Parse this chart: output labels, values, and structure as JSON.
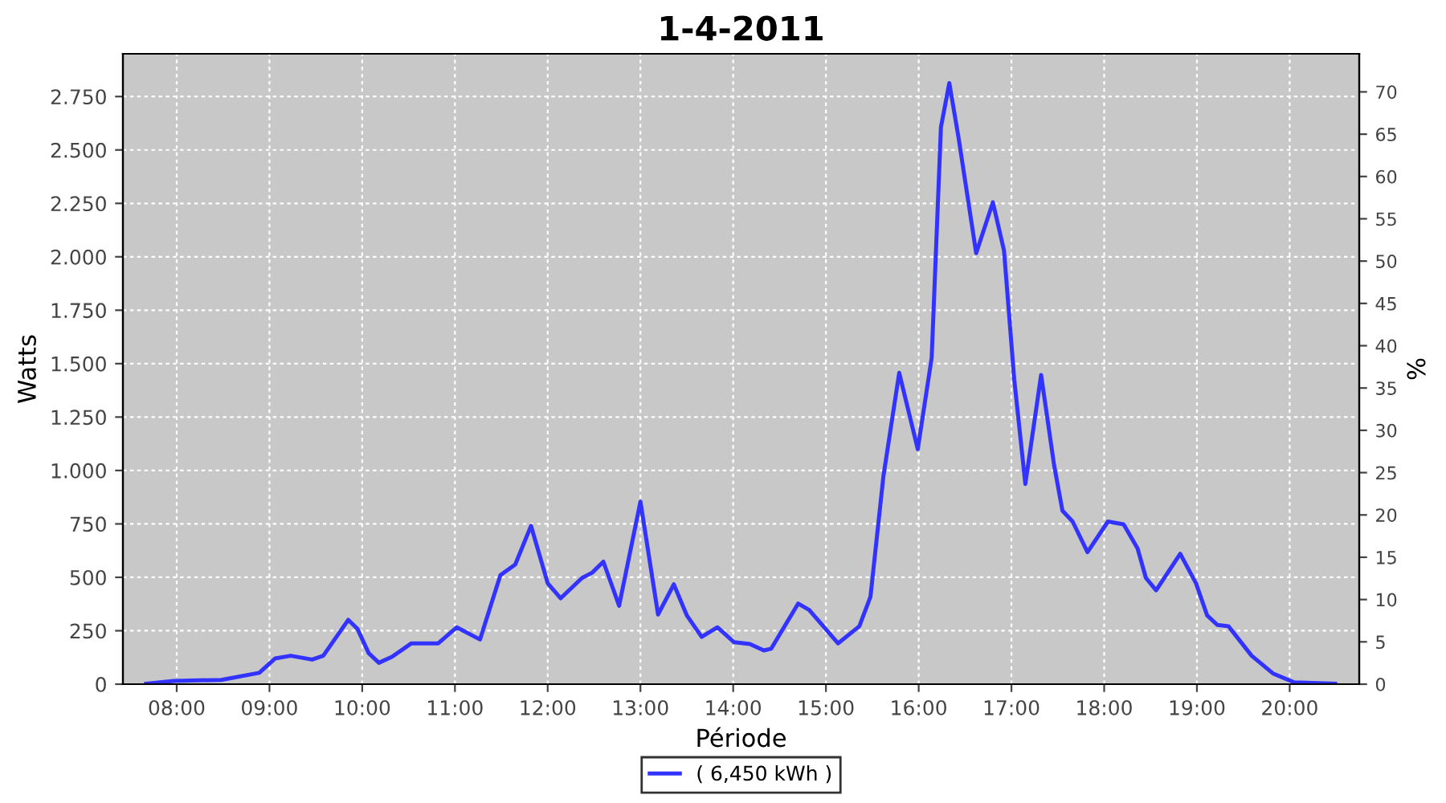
{
  "chart_data": {
    "type": "line",
    "title": "1-4-2011",
    "xlabel": "Période",
    "ylabel": "Watts",
    "y2label": "%",
    "x": [
      7.67,
      7.97,
      8.48,
      8.89,
      9.06,
      9.23,
      9.46,
      9.58,
      9.85,
      9.95,
      10.07,
      10.18,
      10.32,
      10.53,
      10.82,
      11.02,
      11.27,
      11.49,
      11.65,
      11.82,
      12.0,
      12.14,
      12.37,
      12.48,
      12.6,
      12.77,
      13.0,
      13.19,
      13.36,
      13.5,
      13.66,
      13.83,
      14.01,
      14.18,
      14.33,
      14.41,
      14.7,
      14.82,
      15.13,
      15.36,
      15.48,
      15.62,
      15.79,
      15.99,
      16.14,
      16.24,
      16.33,
      16.43,
      16.62,
      16.8,
      16.92,
      17.03,
      17.15,
      17.32,
      17.46,
      17.55,
      17.66,
      17.82,
      18.04,
      18.21,
      18.36,
      18.45,
      18.56,
      18.82,
      18.99,
      19.11,
      19.22,
      19.34,
      19.59,
      19.82,
      20.05,
      20.49
    ],
    "series": [
      {
        "name": "( 6,450 kWh )",
        "color": "#3333ff",
        "values": [
          2,
          15,
          20,
          53,
          120,
          133,
          115,
          133,
          301,
          258,
          145,
          100,
          128,
          191,
          191,
          266,
          209,
          510,
          560,
          741,
          472,
          402,
          497,
          522,
          573,
          367,
          854,
          326,
          467,
          322,
          221,
          266,
          196,
          188,
          158,
          166,
          377,
          347,
          191,
          271,
          409,
          974,
          1457,
          1100,
          1527,
          2607,
          2813,
          2557,
          2017,
          2255,
          2029,
          1427,
          937,
          1447,
          1025,
          812,
          761,
          618,
          761,
          748,
          635,
          497,
          439,
          610,
          472,
          322,
          277,
          271,
          133,
          50,
          8,
          2
        ]
      }
    ],
    "xlim": [
      7.42,
      20.75
    ],
    "xticks": [
      {
        "value": 8,
        "label": "08:00"
      },
      {
        "value": 9,
        "label": "09:00"
      },
      {
        "value": 10,
        "label": "10:00"
      },
      {
        "value": 11,
        "label": "11:00"
      },
      {
        "value": 12,
        "label": "12:00"
      },
      {
        "value": 13,
        "label": "13:00"
      },
      {
        "value": 14,
        "label": "14:00"
      },
      {
        "value": 15,
        "label": "15:00"
      },
      {
        "value": 16,
        "label": "16:00"
      },
      {
        "value": 17,
        "label": "17:00"
      },
      {
        "value": 18,
        "label": "18:00"
      },
      {
        "value": 19,
        "label": "19:00"
      },
      {
        "value": 20,
        "label": "20:00"
      }
    ],
    "ylim": [
      0,
      2950
    ],
    "yticks": [
      0,
      250,
      500,
      750,
      {
        "value": 1000,
        "label": "1.000"
      },
      {
        "value": 1250,
        "label": "1.250"
      },
      {
        "value": 1500,
        "label": "1.500"
      },
      {
        "value": 1750,
        "label": "1.750"
      },
      {
        "value": 2000,
        "label": "2.000"
      },
      {
        "value": 2250,
        "label": "2.250"
      },
      {
        "value": 2500,
        "label": "2.500"
      },
      {
        "value": 2750,
        "label": "2.750"
      }
    ],
    "y2lim": [
      0,
      74.5
    ],
    "y2ticks": [
      0,
      5,
      10,
      15,
      20,
      25,
      30,
      35,
      40,
      45,
      50,
      55,
      60,
      65,
      70
    ],
    "grid": true,
    "legend": "bottom",
    "line_style": "solid",
    "marker": "none"
  }
}
